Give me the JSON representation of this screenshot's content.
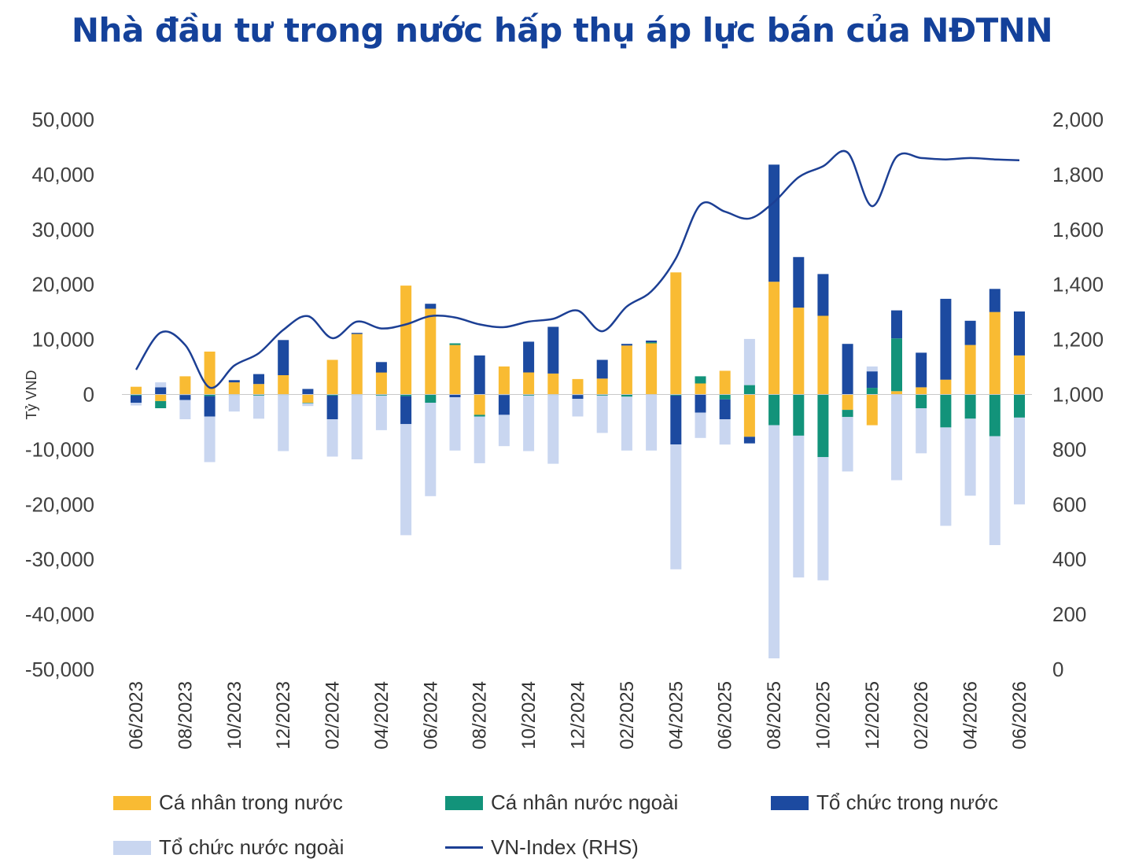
{
  "title": "Nhà đầu tư trong nước hấp thụ áp lực bán của NĐTNN",
  "chart_data": {
    "type": "bar",
    "stacked": true,
    "ylabel": "Tỷ VND",
    "ylim": [
      -50000,
      50000
    ],
    "y_ticks": [
      "50,000",
      "40,000",
      "30,000",
      "20,000",
      "10,000",
      "0",
      "-10,000",
      "-20,000",
      "-30,000",
      "-40,000",
      "-50,000"
    ],
    "y2lim": [
      0,
      2000
    ],
    "y2_ticks": [
      "2,000",
      "1,800",
      "1,600",
      "1,400",
      "1,200",
      "1,000",
      "800",
      "600",
      "400",
      "200",
      "0"
    ],
    "x_tick_labels": [
      "06/2023",
      "08/2023",
      "10/2023",
      "12/2023",
      "02/2024",
      "04/2024",
      "06/2024",
      "08/2024",
      "10/2024",
      "12/2024",
      "02/2025",
      "04/2025",
      "06/2025",
      "08/2025",
      "10/2025",
      "12/2025",
      "02/2026",
      "04/2026",
      "06/2026"
    ],
    "categories": [
      "06/2023",
      "07/2023",
      "08/2023",
      "09/2023",
      "10/2023",
      "11/2023",
      "12/2023",
      "01/2024",
      "02/2024",
      "03/2024",
      "04/2024",
      "05/2024",
      "06/2024",
      "07/2024",
      "08/2024",
      "09/2024",
      "10/2024",
      "11/2024",
      "12/2024",
      "01/2025",
      "02/2025",
      "03/2025",
      "04/2025",
      "05/2025",
      "06/2025",
      "07/2025",
      "08/2025",
      "09/2025",
      "10/2025",
      "11/2025",
      "12/2025",
      "01/2026",
      "02/2026",
      "03/2026",
      "04/2026",
      "05/2026",
      "06/2026"
    ],
    "series": [
      {
        "name": "Cá nhân trong nước",
        "color": "#f9bb33",
        "values": [
          1400,
          -1200,
          3300,
          7800,
          2200,
          1900,
          3500,
          -1500,
          6300,
          11000,
          4000,
          19800,
          15600,
          9000,
          -3700,
          5100,
          4000,
          3800,
          2800,
          2900,
          8900,
          9300,
          22200,
          2000,
          4300,
          -7700,
          20500,
          15800,
          14300,
          -2800,
          -5600,
          600,
          1300,
          2700,
          9000,
          15000,
          7100
        ]
      },
      {
        "name": "Cá nhân nước ngoài",
        "color": "#12937a",
        "values": [
          -200,
          -1300,
          -100,
          -300,
          -100,
          -200,
          -100,
          -100,
          -200,
          -100,
          -200,
          -300,
          -1500,
          300,
          -300,
          -100,
          -200,
          -100,
          -100,
          -200,
          -400,
          200,
          -200,
          1300,
          -900,
          1700,
          -5600,
          -7500,
          -11400,
          -1300,
          1200,
          9600,
          -2500,
          -6000,
          -4400,
          -7600,
          -4200
        ]
      },
      {
        "name": "Tổ chức trong nước",
        "color": "#1c4aa0",
        "values": [
          -1300,
          1300,
          -900,
          -3700,
          400,
          1800,
          6400,
          1000,
          -4300,
          200,
          1900,
          -5100,
          900,
          -500,
          7100,
          -3600,
          5600,
          8500,
          -700,
          3400,
          300,
          300,
          -8900,
          -3300,
          -3600,
          -1200,
          21300,
          9200,
          7600,
          9200,
          3000,
          5100,
          6300,
          14700,
          4400,
          4200,
          8000
        ]
      },
      {
        "name": "Tổ chức nước ngoài",
        "color": "#c9d6f0",
        "values": [
          -500,
          900,
          -3500,
          -8300,
          -3000,
          -4200,
          -10200,
          -500,
          -6800,
          -11700,
          -6300,
          -20200,
          -17000,
          -9700,
          -8500,
          -5700,
          -10100,
          -12500,
          -3200,
          -6800,
          -9800,
          -10200,
          -22700,
          -4600,
          -4600,
          8400,
          -42400,
          -25800,
          -22400,
          -9900,
          900,
          -15600,
          -8200,
          -17900,
          -14000,
          -19800,
          -15800
        ]
      },
      {
        "name": "VN-Index (RHS)",
        "color": "#1c3f94",
        "axis": "right",
        "type": "line",
        "values": [
          1090,
          1225,
          1180,
          1025,
          1105,
          1150,
          1235,
          1285,
          1205,
          1265,
          1240,
          1255,
          1285,
          1280,
          1255,
          1245,
          1265,
          1275,
          1305,
          1230,
          1320,
          1375,
          1495,
          1690,
          1665,
          1640,
          1700,
          1790,
          1830,
          1880,
          1685,
          1865,
          1860,
          1855,
          1860,
          1855,
          1852
        ]
      }
    ],
    "legend_position": "bottom",
    "grid": false
  }
}
